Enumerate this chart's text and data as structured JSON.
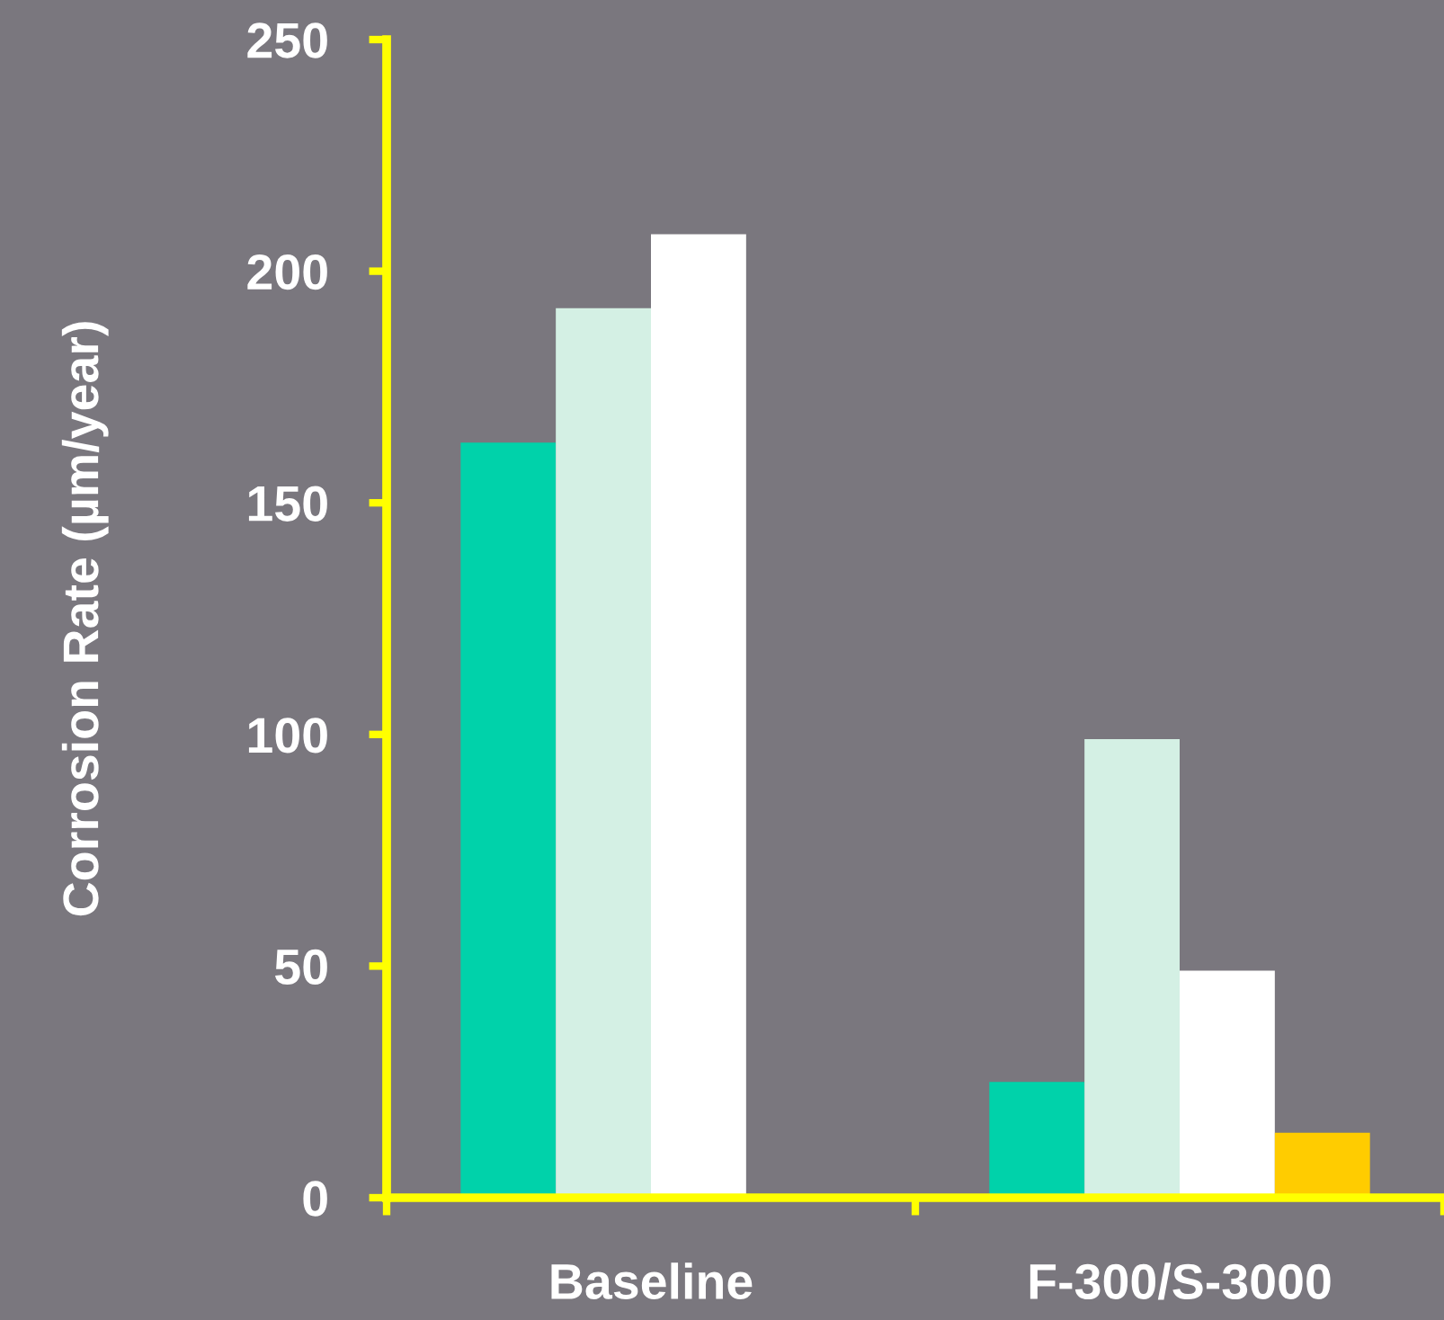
{
  "chart_data": {
    "type": "bar",
    "ylabel": "Corrosion Rate (µm/year)",
    "categories": [
      "Baseline",
      "F-300/S-3000"
    ],
    "series": [
      {
        "color": "#00d2aa",
        "values": [
          163,
          25
        ]
      },
      {
        "color": "#d4f0e4",
        "values": [
          192,
          99
        ]
      },
      {
        "color": "#ffffff",
        "values": [
          208,
          49
        ]
      },
      {
        "color": "#ffcc00",
        "values": [
          null,
          14
        ]
      }
    ],
    "ylim": [
      0,
      250
    ],
    "yticks": [
      0,
      50,
      100,
      150,
      200,
      250
    ],
    "grid": false,
    "legend": false
  }
}
